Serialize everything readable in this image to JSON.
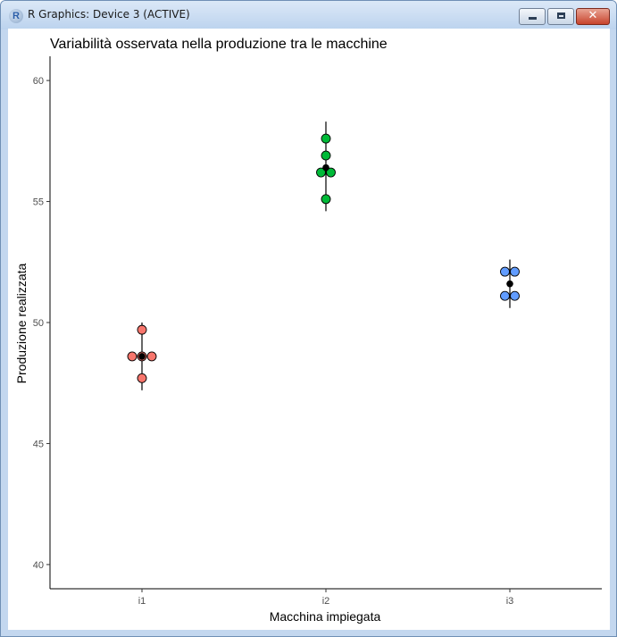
{
  "window": {
    "title": "R Graphics: Device 3 (ACTIVE)",
    "icon": "r-logo-icon",
    "icon_letter": "R",
    "close_glyph": "✕"
  },
  "chart_data": {
    "type": "scatter",
    "title": "Variabilità osservata nella produzione tra le macchine",
    "xlabel": "Macchina impiegata",
    "ylabel": "Produzione realizzata",
    "categories": [
      "i1",
      "i2",
      "i3"
    ],
    "ylim": [
      39,
      61
    ],
    "yticks": [
      40,
      45,
      50,
      55,
      60
    ],
    "grid": false,
    "series": [
      {
        "category": "i1",
        "color": "#f8766d",
        "points": [
          49.7,
          48.6,
          48.6,
          48.6,
          47.7
        ],
        "mean": 48.6,
        "error": [
          47.2,
          50.0
        ]
      },
      {
        "category": "i2",
        "color": "#00ba38",
        "points": [
          57.6,
          56.9,
          56.2,
          56.2,
          55.1
        ],
        "mean": 56.4,
        "error": [
          54.6,
          58.3
        ]
      },
      {
        "category": "i3",
        "color": "#619cff",
        "points": [
          52.1,
          52.1,
          51.1,
          51.1
        ],
        "mean": 51.6,
        "error": [
          50.6,
          52.6
        ]
      }
    ]
  }
}
